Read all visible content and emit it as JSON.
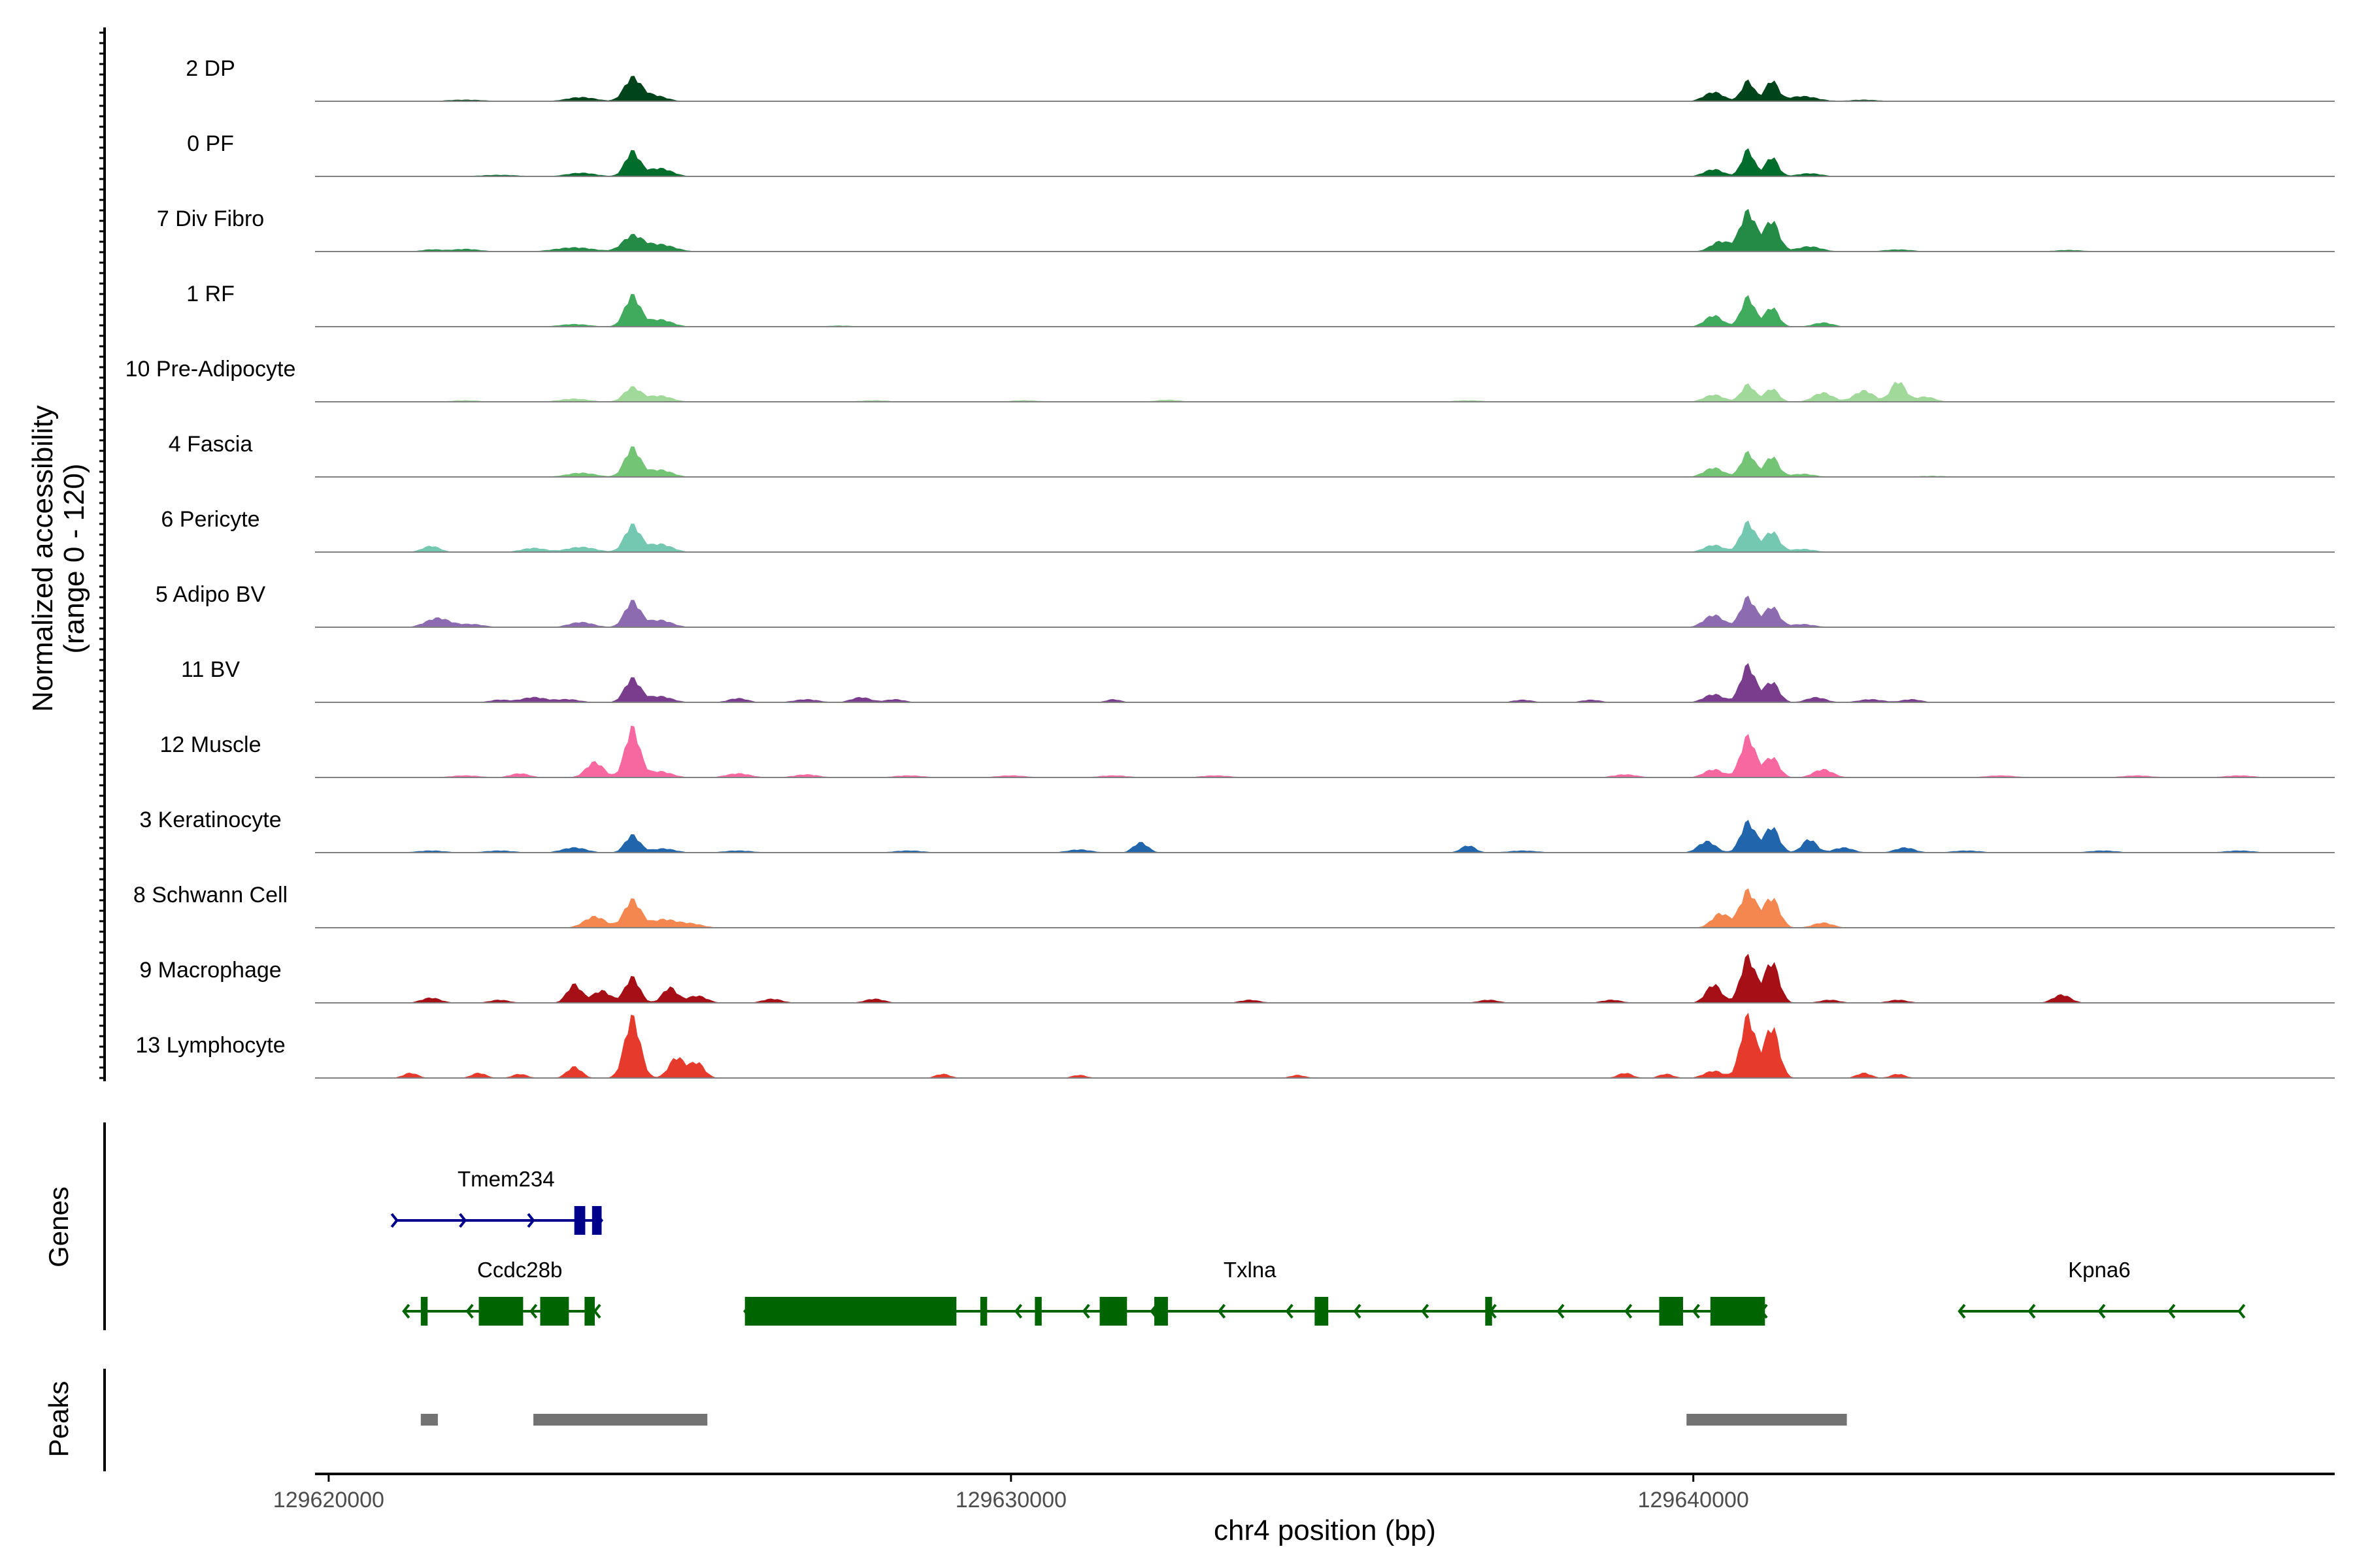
{
  "chart_data": {
    "type": "area",
    "title": "",
    "chromosome": "chr4",
    "xlabel": "chr4 position (bp)",
    "ylabel_line1": "Normalized accessibility",
    "ylabel_line2": "(range 0 - 120)",
    "y_range": [
      0,
      120
    ],
    "xlim": [
      129619800,
      129649400
    ],
    "x_ticks": [
      {
        "value": 129620000,
        "label": "129620000"
      },
      {
        "value": 129630000,
        "label": "129630000"
      },
      {
        "value": 129640000,
        "label": "129640000"
      }
    ],
    "tracks": [
      {
        "name": "2 DP",
        "color": "#00441b",
        "peaks": [
          [
            129624450,
            44,
            170
          ],
          [
            129624750,
            12,
            260
          ],
          [
            129623700,
            8,
            300
          ],
          [
            129640800,
            40,
            130
          ],
          [
            129641150,
            40,
            130
          ],
          [
            129640300,
            18,
            200
          ],
          [
            129641600,
            10,
            300
          ],
          [
            129622000,
            3,
            400
          ],
          [
            129642500,
            3,
            300
          ]
        ]
      },
      {
        "name": "0 PF",
        "color": "#006d2c",
        "peaks": [
          [
            129624450,
            48,
            150
          ],
          [
            129624850,
            16,
            250
          ],
          [
            129623700,
            7,
            300
          ],
          [
            129640800,
            52,
            130
          ],
          [
            129641150,
            38,
            130
          ],
          [
            129640300,
            14,
            200
          ],
          [
            129641700,
            6,
            250
          ],
          [
            129622500,
            3,
            400
          ]
        ]
      },
      {
        "name": "7 Div Fibro",
        "color": "#238b45",
        "peaks": [
          [
            129624450,
            30,
            200
          ],
          [
            129624850,
            14,
            300
          ],
          [
            129623600,
            8,
            400
          ],
          [
            129622000,
            5,
            300
          ],
          [
            129640800,
            78,
            160
          ],
          [
            129641150,
            60,
            150
          ],
          [
            129640400,
            20,
            200
          ],
          [
            129641700,
            10,
            250
          ],
          [
            129643000,
            4,
            300
          ],
          [
            129645500,
            3,
            300
          ],
          [
            129621500,
            4,
            200
          ]
        ]
      },
      {
        "name": "1 RF",
        "color": "#41ab5d",
        "peaks": [
          [
            129624450,
            60,
            160
          ],
          [
            129624850,
            14,
            250
          ],
          [
            129623600,
            5,
            300
          ],
          [
            129640800,
            58,
            140
          ],
          [
            129641150,
            38,
            140
          ],
          [
            129640300,
            22,
            180
          ],
          [
            129641900,
            8,
            200
          ],
          [
            129627500,
            2,
            300
          ]
        ]
      },
      {
        "name": "10 Pre-Adipocyte",
        "color": "#a1d99b",
        "peaks": [
          [
            129624450,
            28,
            170
          ],
          [
            129624850,
            12,
            250
          ],
          [
            129623600,
            6,
            300
          ],
          [
            129640800,
            34,
            140
          ],
          [
            129641150,
            26,
            140
          ],
          [
            129640300,
            14,
            200
          ],
          [
            129641900,
            18,
            200
          ],
          [
            129642500,
            22,
            200
          ],
          [
            129643000,
            40,
            150
          ],
          [
            129643400,
            10,
            200
          ],
          [
            129628000,
            3,
            300
          ],
          [
            129630200,
            3,
            300
          ],
          [
            129632300,
            4,
            250
          ],
          [
            129636700,
            3,
            300
          ],
          [
            129622000,
            3,
            300
          ]
        ]
      },
      {
        "name": "4 Fascia",
        "color": "#74c476",
        "peaks": [
          [
            129624450,
            56,
            160
          ],
          [
            129624850,
            14,
            250
          ],
          [
            129623700,
            8,
            300
          ],
          [
            129640800,
            48,
            140
          ],
          [
            129641150,
            40,
            140
          ],
          [
            129640300,
            18,
            200
          ],
          [
            129641600,
            6,
            250
          ],
          [
            129643500,
            2,
            400
          ]
        ]
      },
      {
        "name": "6 Pericyte",
        "color": "#74c7b1",
        "peaks": [
          [
            129624450,
            52,
            160
          ],
          [
            129624850,
            16,
            250
          ],
          [
            129623700,
            10,
            300
          ],
          [
            129621500,
            12,
            180
          ],
          [
            129623000,
            8,
            250
          ],
          [
            129640800,
            58,
            150
          ],
          [
            129641150,
            40,
            150
          ],
          [
            129640300,
            14,
            200
          ],
          [
            129641600,
            6,
            250
          ]
        ]
      },
      {
        "name": "5 Adipo BV",
        "color": "#8c6bb1",
        "peaks": [
          [
            129624450,
            50,
            160
          ],
          [
            129624850,
            14,
            250
          ],
          [
            129623700,
            10,
            250
          ],
          [
            129621600,
            18,
            250
          ],
          [
            129622100,
            6,
            250
          ],
          [
            129640800,
            58,
            150
          ],
          [
            129641150,
            40,
            150
          ],
          [
            129640300,
            24,
            200
          ],
          [
            129641600,
            6,
            250
          ]
        ]
      },
      {
        "name": "11 BV",
        "color": "#7a3d8e",
        "peaks": [
          [
            129624450,
            46,
            160
          ],
          [
            129624850,
            12,
            250
          ],
          [
            129623000,
            10,
            250
          ],
          [
            129623500,
            6,
            250
          ],
          [
            129626000,
            8,
            200
          ],
          [
            129627000,
            6,
            250
          ],
          [
            129627800,
            10,
            200
          ],
          [
            129628300,
            6,
            200
          ],
          [
            129631500,
            6,
            150
          ],
          [
            129637500,
            5,
            200
          ],
          [
            129638500,
            5,
            200
          ],
          [
            129640800,
            72,
            150
          ],
          [
            129641150,
            40,
            150
          ],
          [
            129640300,
            16,
            200
          ],
          [
            129641800,
            10,
            200
          ],
          [
            129642600,
            6,
            250
          ],
          [
            129643200,
            6,
            200
          ],
          [
            129622500,
            5,
            200
          ]
        ]
      },
      {
        "name": "12 Muscle",
        "color": "#f768a1",
        "peaks": [
          [
            129624450,
            96,
            150
          ],
          [
            129623900,
            30,
            180
          ],
          [
            129624850,
            12,
            250
          ],
          [
            129622800,
            8,
            200
          ],
          [
            129626000,
            8,
            250
          ],
          [
            129627000,
            6,
            250
          ],
          [
            129628500,
            4,
            300
          ],
          [
            129630000,
            4,
            300
          ],
          [
            129631500,
            4,
            300
          ],
          [
            129633000,
            4,
            300
          ],
          [
            129640800,
            80,
            150
          ],
          [
            129641150,
            40,
            150
          ],
          [
            129640300,
            16,
            200
          ],
          [
            129641900,
            16,
            200
          ],
          [
            129622000,
            4,
            300
          ],
          [
            129639000,
            6,
            250
          ],
          [
            129644500,
            4,
            300
          ],
          [
            129646500,
            4,
            300
          ],
          [
            129648000,
            4,
            300
          ]
        ]
      },
      {
        "name": "3 Keratinocyte",
        "color": "#2166ac",
        "peaks": [
          [
            129624450,
            34,
            150
          ],
          [
            129623600,
            10,
            250
          ],
          [
            129624900,
            8,
            250
          ],
          [
            129621500,
            4,
            300
          ],
          [
            129622500,
            4,
            300
          ],
          [
            129626000,
            4,
            300
          ],
          [
            129628500,
            4,
            300
          ],
          [
            129631000,
            6,
            250
          ],
          [
            129631900,
            20,
            150
          ],
          [
            129636700,
            14,
            150
          ],
          [
            129637500,
            4,
            300
          ],
          [
            129640200,
            22,
            180
          ],
          [
            129640800,
            60,
            150
          ],
          [
            129641150,
            50,
            150
          ],
          [
            129641700,
            26,
            150
          ],
          [
            129642200,
            10,
            200
          ],
          [
            129643100,
            10,
            200
          ],
          [
            129644000,
            4,
            300
          ],
          [
            129646000,
            4,
            300
          ],
          [
            129648000,
            4,
            300
          ]
        ]
      },
      {
        "name": "8 Schwann Cell",
        "color": "#f4874f",
        "peaks": [
          [
            129624450,
            54,
            170
          ],
          [
            129623900,
            22,
            220
          ],
          [
            129624900,
            16,
            250
          ],
          [
            129625300,
            8,
            250
          ],
          [
            129640800,
            72,
            160
          ],
          [
            129641150,
            58,
            160
          ],
          [
            129640400,
            28,
            180
          ],
          [
            129641900,
            10,
            200
          ]
        ]
      },
      {
        "name": "9 Macrophage",
        "color": "#a50f15",
        "peaks": [
          [
            129624450,
            50,
            150
          ],
          [
            129623600,
            36,
            150
          ],
          [
            129624000,
            24,
            180
          ],
          [
            129625000,
            30,
            150
          ],
          [
            129625400,
            14,
            200
          ],
          [
            129621500,
            10,
            200
          ],
          [
            129622500,
            6,
            200
          ],
          [
            129626500,
            8,
            200
          ],
          [
            129628000,
            8,
            200
          ],
          [
            129633500,
            6,
            200
          ],
          [
            129637000,
            6,
            200
          ],
          [
            129638800,
            6,
            200
          ],
          [
            129640300,
            36,
            160
          ],
          [
            129640800,
            90,
            150
          ],
          [
            129641150,
            80,
            150
          ],
          [
            129642000,
            6,
            200
          ],
          [
            129645400,
            16,
            180
          ],
          [
            129643000,
            6,
            200
          ]
        ]
      },
      {
        "name": "13 Lymphocyte",
        "color": "#e63b2c",
        "peaks": [
          [
            129624450,
            118,
            160
          ],
          [
            129623600,
            22,
            150
          ],
          [
            129625100,
            40,
            160
          ],
          [
            129625400,
            30,
            150
          ],
          [
            129621200,
            10,
            150
          ],
          [
            129622200,
            10,
            150
          ],
          [
            129622800,
            8,
            150
          ],
          [
            129629000,
            8,
            150
          ],
          [
            129631000,
            6,
            150
          ],
          [
            129634200,
            6,
            150
          ],
          [
            129639000,
            10,
            150
          ],
          [
            129639600,
            8,
            150
          ],
          [
            129640300,
            14,
            200
          ],
          [
            129640800,
            120,
            150
          ],
          [
            129641150,
            100,
            150
          ],
          [
            129642500,
            10,
            150
          ],
          [
            129643000,
            8,
            150
          ]
        ]
      }
    ],
    "genes": [
      {
        "name": "Tmem234",
        "strand": "+",
        "row": 1,
        "color": "#00008b",
        "start": 129621000,
        "end": 129624000,
        "label_pos": 129622600,
        "exons": [
          [
            129623600,
            129623760
          ],
          [
            129623860,
            129624000
          ]
        ]
      },
      {
        "name": "Ccdc28b",
        "strand": "-",
        "row": 2,
        "color": "#006400",
        "start": 129621100,
        "end": 129623900,
        "label_pos": 129622800,
        "exons": [
          [
            129621350,
            129621450
          ],
          [
            129622200,
            129622850
          ],
          [
            129623100,
            129623520
          ],
          [
            129623750,
            129623900
          ]
        ]
      },
      {
        "name": "Txlna",
        "strand": "-",
        "row": 2,
        "color": "#006400",
        "start": 129626100,
        "end": 129641000,
        "label_pos": 129633500,
        "exons": [
          [
            129626100,
            129629200
          ],
          [
            129629550,
            129629650
          ],
          [
            129630350,
            129630450
          ],
          [
            129631300,
            129631700
          ],
          [
            129632100,
            129632300
          ],
          [
            129634450,
            129634650
          ],
          [
            129636950,
            129637050
          ],
          [
            129639500,
            129639850
          ],
          [
            129640250,
            129641050
          ]
        ]
      },
      {
        "name": "Kpna6",
        "strand": "-",
        "row": 2,
        "color": "#006400",
        "start": 129643900,
        "end": 129648000,
        "label_pos": 129645950,
        "exons": []
      }
    ],
    "peak_regions": [
      {
        "start": 129621350,
        "end": 129621600
      },
      {
        "start": 129623000,
        "end": 129625550
      },
      {
        "start": 129639900,
        "end": 129642250
      }
    ],
    "panels": {
      "genes": "Genes",
      "peaks": "Peaks"
    }
  }
}
